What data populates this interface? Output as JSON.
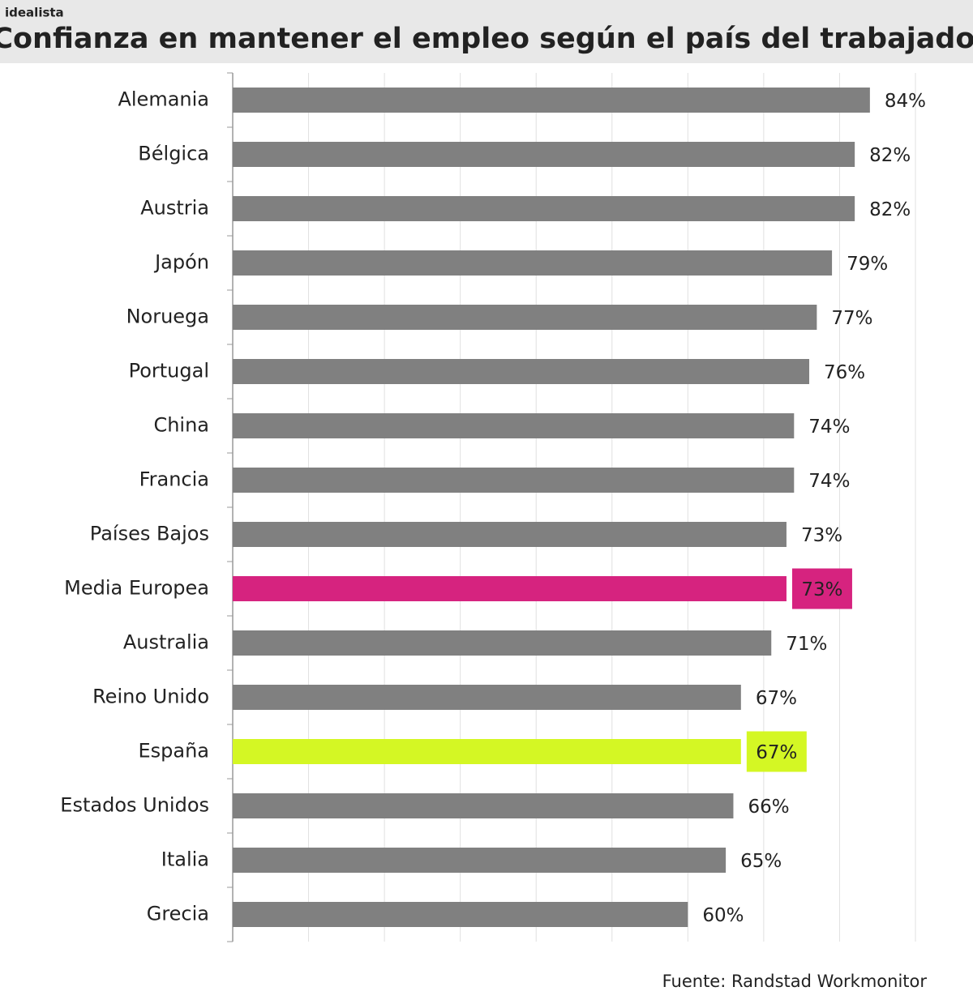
{
  "brand": "idealista",
  "chart_data": {
    "type": "bar",
    "orientation": "horizontal",
    "title": "Confianza en mantener el empleo según el país del trabajador",
    "source": "Fuente: Randstad Workmonitor",
    "categories": [
      "Alemania",
      "Bélgica",
      "Austria",
      "Japón",
      "Noruega",
      "Portugal",
      "China",
      "Francia",
      "Países Bajos",
      "Media Europea",
      "Australia",
      "Reino Unido",
      "España",
      "Estados Unidos",
      "Italia",
      "Grecia"
    ],
    "values": [
      84,
      82,
      82,
      79,
      77,
      76,
      74,
      74,
      73,
      73,
      71,
      67,
      67,
      66,
      65,
      60
    ],
    "value_labels": [
      "84%",
      "82%",
      "82%",
      "79%",
      "77%",
      "76%",
      "74%",
      "74%",
      "73%",
      "73%",
      "71%",
      "67%",
      "67%",
      "66%",
      "65%",
      "60%"
    ],
    "colors": [
      "#808080",
      "#808080",
      "#808080",
      "#808080",
      "#808080",
      "#808080",
      "#808080",
      "#808080",
      "#808080",
      "#d6237f",
      "#808080",
      "#808080",
      "#d4f724",
      "#808080",
      "#808080",
      "#808080"
    ],
    "highlighted": [
      false,
      false,
      false,
      false,
      false,
      false,
      false,
      false,
      false,
      true,
      false,
      false,
      true,
      false,
      false,
      false
    ],
    "xlim": [
      0,
      90
    ],
    "xticks": [
      0,
      10,
      20,
      30,
      40,
      50,
      60,
      70,
      80,
      90
    ],
    "grid": true
  }
}
